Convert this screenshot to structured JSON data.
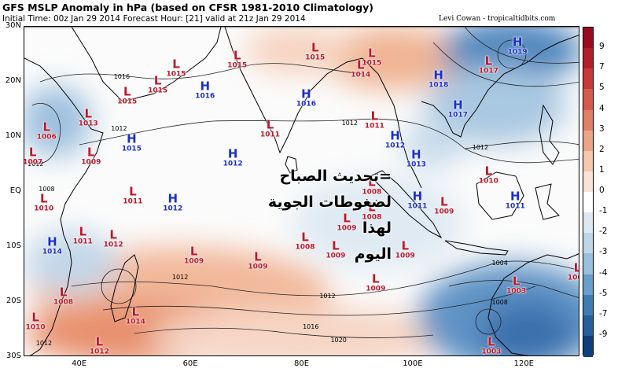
{
  "header": {
    "title": "GFS MSLP Anomaly in hPa (based on CFSR 1981-2010 Climatology)",
    "subtitle": "Initial Time: 00z Jan 29 2014 Forecast Hour: [21] valid at 21z Jan 29 2014",
    "credit": "Levi Cowan - tropicaltidbits.com"
  },
  "map": {
    "lon_range": [
      30,
      130
    ],
    "lat_range": [
      -30,
      30
    ],
    "lat_labels": [
      {
        "lat": 30,
        "text": "30N"
      },
      {
        "lat": 20,
        "text": "20N"
      },
      {
        "lat": 10,
        "text": "10N"
      },
      {
        "lat": 0,
        "text": "EQ"
      },
      {
        "lat": -10,
        "text": "10S"
      },
      {
        "lat": -20,
        "text": "20S"
      },
      {
        "lat": -30,
        "text": "30S"
      }
    ],
    "lon_labels": [
      {
        "lon": 40,
        "text": "40E"
      },
      {
        "lon": 60,
        "text": "60E"
      },
      {
        "lon": 80,
        "text": "80E"
      },
      {
        "lon": 100,
        "text": "100E"
      },
      {
        "lon": 120,
        "text": "120E"
      }
    ],
    "isobar_labels": [
      {
        "lon": 47,
        "lat": 11.5,
        "text": "1012"
      },
      {
        "lon": 47.5,
        "lat": 20.8,
        "text": "1016"
      },
      {
        "lon": 32,
        "lat": 5,
        "text": "1012"
      },
      {
        "lon": 34,
        "lat": 0.5,
        "text": "1008"
      },
      {
        "lon": 58,
        "lat": -15.5,
        "text": "1012"
      },
      {
        "lon": 84.5,
        "lat": -19,
        "text": "1012"
      },
      {
        "lon": 81.5,
        "lat": -24.5,
        "text": "1016"
      },
      {
        "lon": 86.5,
        "lat": -27,
        "text": "1020"
      },
      {
        "lon": 88.5,
        "lat": 12.5,
        "text": "1012"
      },
      {
        "lon": 112,
        "lat": 8,
        "text": "1012"
      },
      {
        "lon": 115.5,
        "lat": -13,
        "text": "1004"
      },
      {
        "lon": 115.5,
        "lat": -20.2,
        "text": "1008"
      },
      {
        "lon": 33.5,
        "lat": -27.5,
        "text": "1012"
      }
    ],
    "systems": [
      {
        "type": "L",
        "value": "1015",
        "lon": 57.3,
        "lat": 22.5
      },
      {
        "type": "L",
        "value": "1015",
        "lon": 54,
        "lat": 19.5
      },
      {
        "type": "L",
        "value": "1015",
        "lon": 48.5,
        "lat": 17.5
      },
      {
        "type": "L",
        "value": "1013",
        "lon": 41.5,
        "lat": 13.5
      },
      {
        "type": "L",
        "value": "1006",
        "lon": 34,
        "lat": 11
      },
      {
        "type": "L",
        "value": "1007",
        "lon": 31.5,
        "lat": 6.5
      },
      {
        "type": "L",
        "value": "1009",
        "lon": 42,
        "lat": 6.5
      },
      {
        "type": "H",
        "value": "1015",
        "lon": 49.3,
        "lat": 8.8
      },
      {
        "type": "H",
        "value": "1016",
        "lon": 62.5,
        "lat": 18.5
      },
      {
        "type": "L",
        "value": "1015",
        "lon": 68.3,
        "lat": 24
      },
      {
        "type": "L",
        "value": "1015",
        "lon": 82.3,
        "lat": 25.5
      },
      {
        "type": "L",
        "value": "1014",
        "lon": 90.5,
        "lat": 22.3
      },
      {
        "type": "L",
        "value": "1015",
        "lon": 92.5,
        "lat": 24.5
      },
      {
        "type": "H",
        "value": "1016",
        "lon": 80.7,
        "lat": 17
      },
      {
        "type": "L",
        "value": "1011",
        "lon": 74.2,
        "lat": 11.5
      },
      {
        "type": "H",
        "value": "1012",
        "lon": 67.5,
        "lat": 6.2
      },
      {
        "type": "L",
        "value": "1011",
        "lon": 93,
        "lat": 13
      },
      {
        "type": "H",
        "value": "1012",
        "lon": 96.7,
        "lat": 9.5
      },
      {
        "type": "H",
        "value": "1013",
        "lon": 100.5,
        "lat": 6
      },
      {
        "type": "L",
        "value": "1008",
        "lon": 92.5,
        "lat": 1
      },
      {
        "type": "L",
        "value": "1008",
        "lon": 92.5,
        "lat": -3.5
      },
      {
        "type": "H",
        "value": "1018",
        "lon": 104.5,
        "lat": 20.5
      },
      {
        "type": "H",
        "value": "1017",
        "lon": 108,
        "lat": 15
      },
      {
        "type": "H",
        "value": "1019",
        "lon": 118.7,
        "lat": 26.5
      },
      {
        "type": "L",
        "value": "1017",
        "lon": 113.5,
        "lat": 23
      },
      {
        "type": "L",
        "value": "1010",
        "lon": 113.5,
        "lat": 3
      },
      {
        "type": "L",
        "value": "1009",
        "lon": 105.5,
        "lat": -2.5
      },
      {
        "type": "H",
        "value": "1011",
        "lon": 100.7,
        "lat": -1.5
      },
      {
        "type": "H",
        "value": "1011",
        "lon": 118.3,
        "lat": -1.5
      },
      {
        "type": "L",
        "value": "1011",
        "lon": 49.5,
        "lat": -0.7
      },
      {
        "type": "H",
        "value": "1012",
        "lon": 56.7,
        "lat": -2
      },
      {
        "type": "L",
        "value": "1010",
        "lon": 33.5,
        "lat": -2
      },
      {
        "type": "H",
        "value": "1014",
        "lon": 35,
        "lat": -9.8
      },
      {
        "type": "L",
        "value": "1011",
        "lon": 40.5,
        "lat": -8
      },
      {
        "type": "L",
        "value": "1012",
        "lon": 46,
        "lat": -8.5
      },
      {
        "type": "L",
        "value": "1009",
        "lon": 60.5,
        "lat": -11.5
      },
      {
        "type": "L",
        "value": "1009",
        "lon": 72,
        "lat": -12.5
      },
      {
        "type": "L",
        "value": "1008",
        "lon": 80.5,
        "lat": -9
      },
      {
        "type": "L",
        "value": "1009",
        "lon": 86,
        "lat": -10.5
      },
      {
        "type": "L",
        "value": "1009",
        "lon": 88,
        "lat": -5.5
      },
      {
        "type": "L",
        "value": "1009",
        "lon": 98.5,
        "lat": -10.5
      },
      {
        "type": "L",
        "value": "1009",
        "lon": 93.2,
        "lat": -16.5
      },
      {
        "type": "L",
        "value": "1008",
        "lon": 37,
        "lat": -19
      },
      {
        "type": "L",
        "value": "1010",
        "lon": 32,
        "lat": -23.5
      },
      {
        "type": "L",
        "value": "1014",
        "lon": 50,
        "lat": -22.5
      },
      {
        "type": "L",
        "value": "1012",
        "lon": 43.5,
        "lat": -28
      },
      {
        "type": "L",
        "value": "1003",
        "lon": 118.5,
        "lat": -17
      },
      {
        "type": "L",
        "value": "1002",
        "lon": 129.5,
        "lat": -14.5
      },
      {
        "type": "L",
        "value": "1003",
        "lon": 114,
        "lat": -28
      }
    ],
    "overlay_text": [
      "=تحديث الصباح",
      "لضغوطات الجوية لهذا",
      "اليوم"
    ]
  },
  "colorbar": {
    "ticks": [
      "9",
      "7",
      "5",
      "4",
      "3",
      "2",
      "1",
      "0",
      "-1",
      "-2",
      "-3",
      "-4",
      "-5",
      "-7",
      "-9"
    ],
    "colors": [
      "#9b0a1f",
      "#b41e2c",
      "#c8393a",
      "#d65b4c",
      "#e17f66",
      "#eca486",
      "#f4c7ae",
      "#f8e4d6",
      "#ffffff",
      "#dde8f2",
      "#bfd6e8",
      "#98bfdc",
      "#6a9fcb",
      "#3f7cb6",
      "#245fa0",
      "#0e3f7c"
    ],
    "accent_low": "#c0162a",
    "accent_high": "#1a2fc8"
  }
}
